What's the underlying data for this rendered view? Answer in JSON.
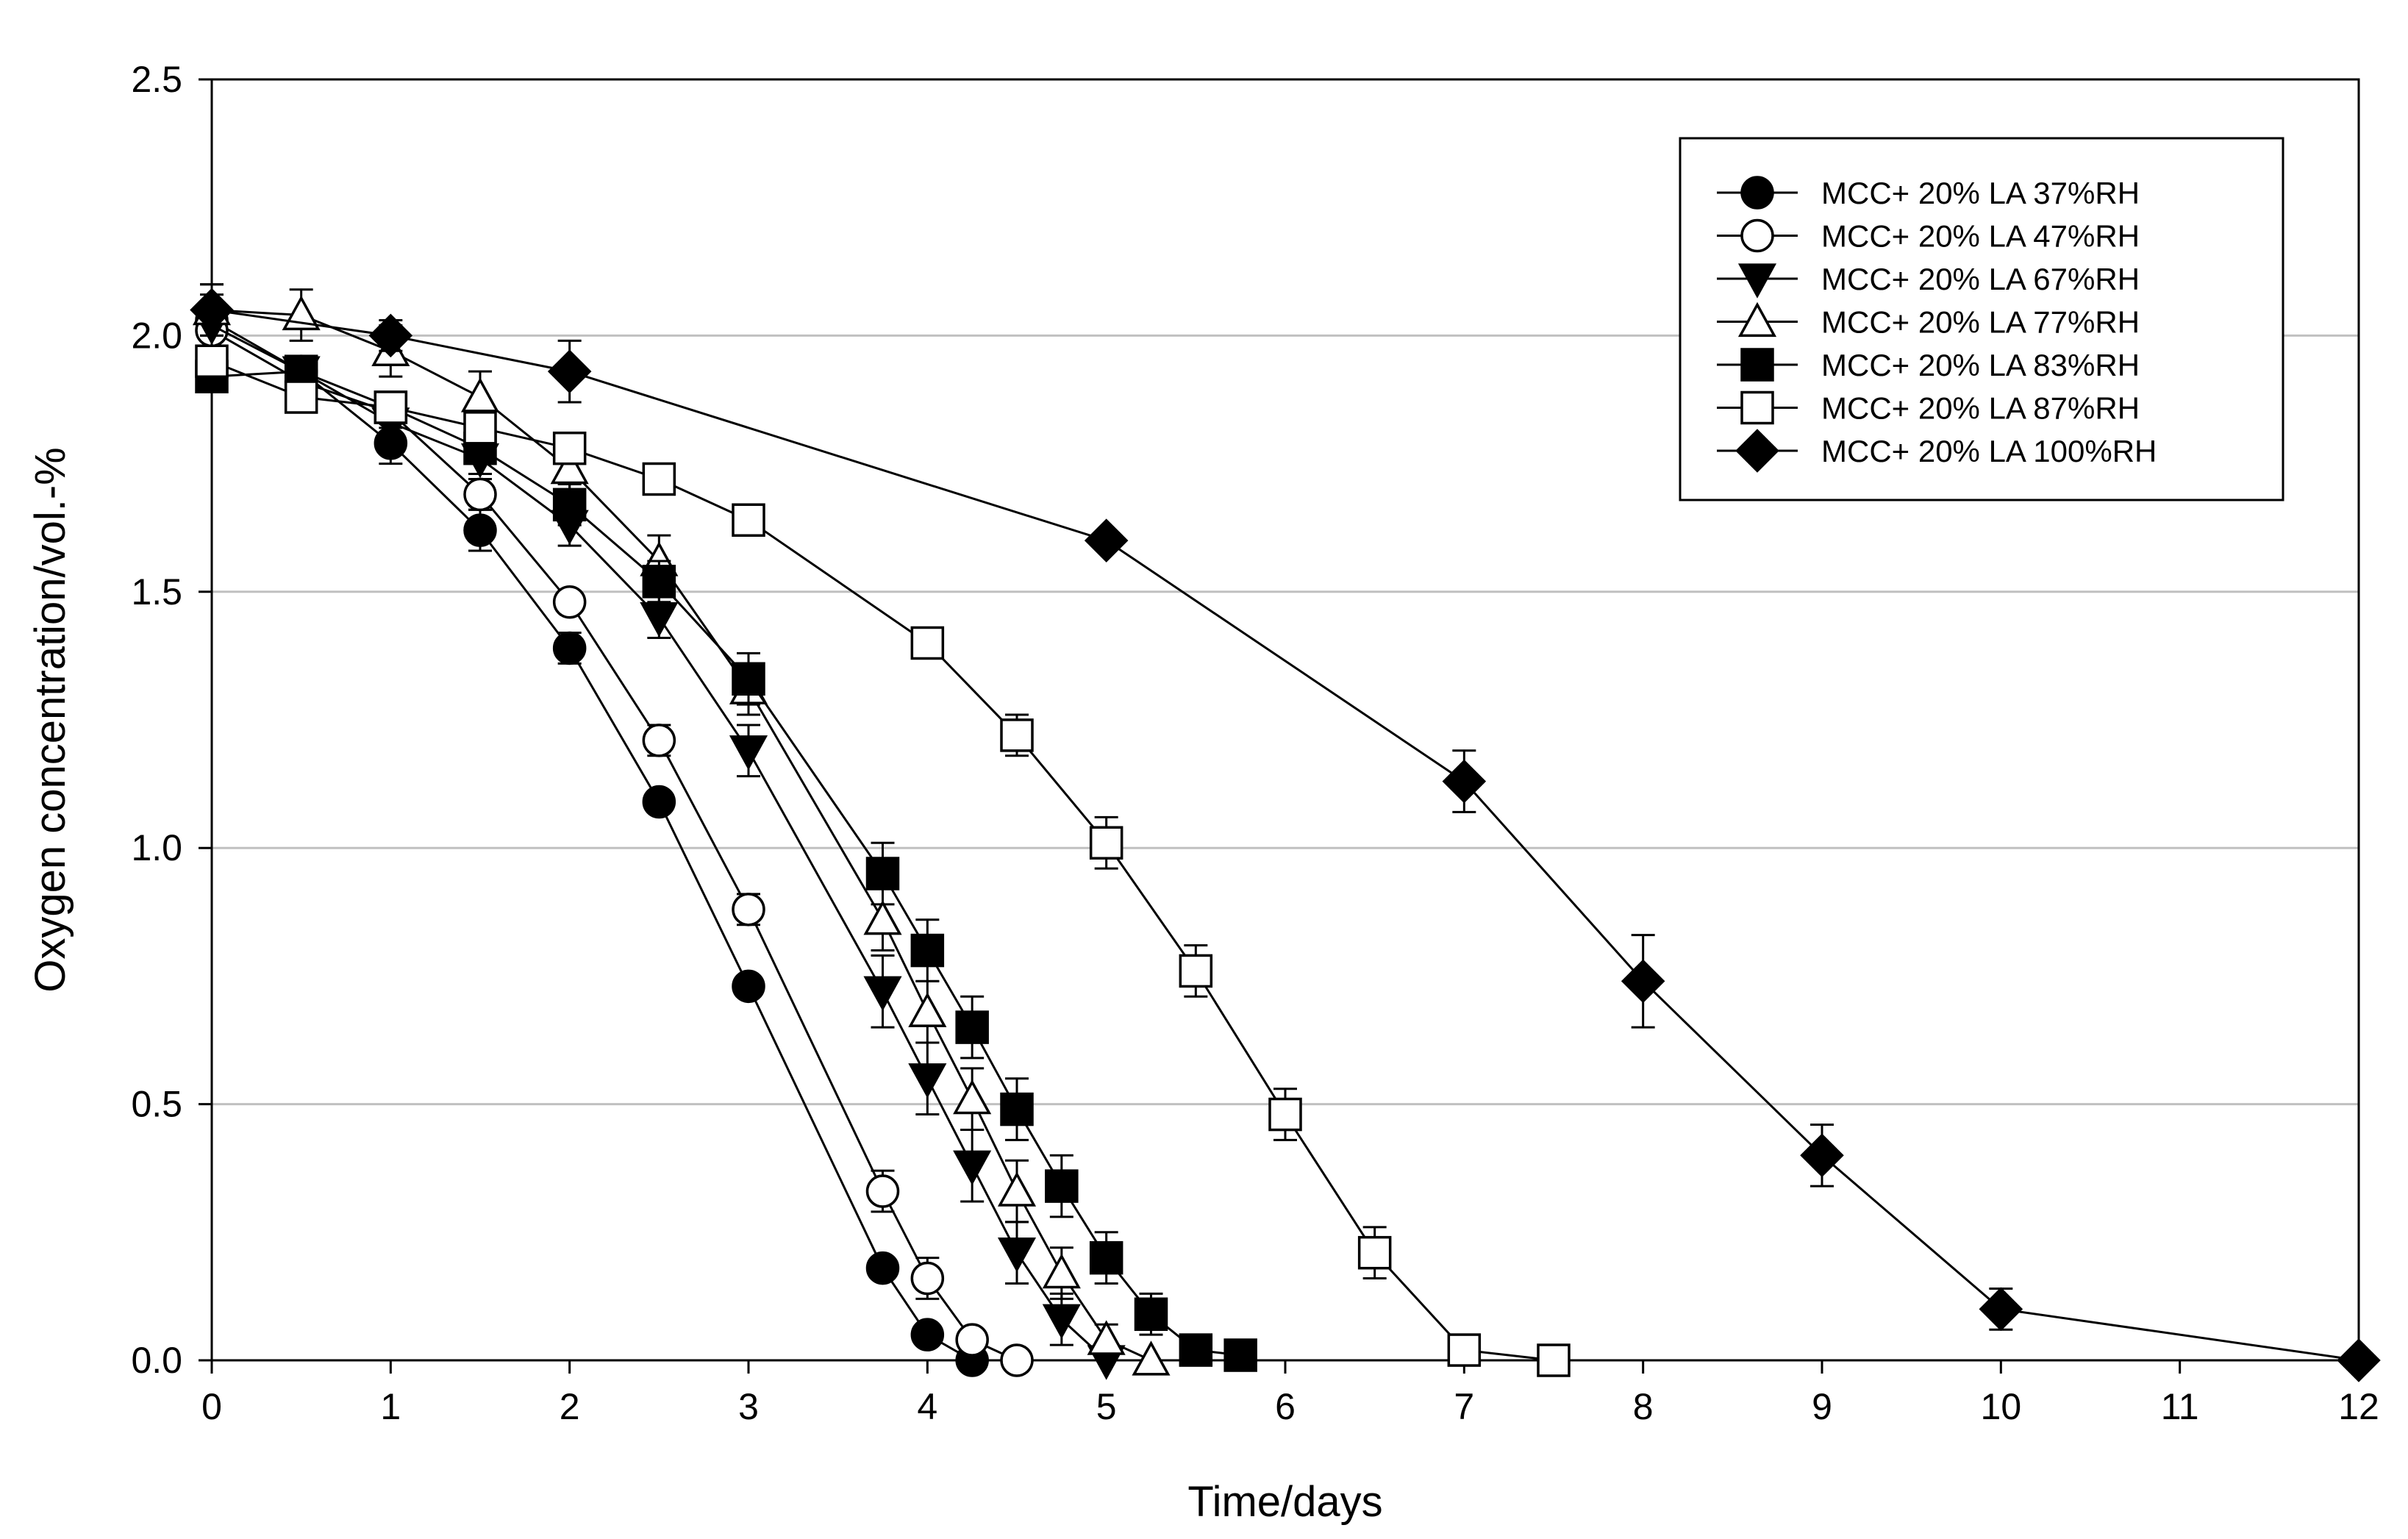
{
  "chart_data": {
    "type": "line",
    "title": "",
    "xlabel": "Time/days",
    "ylabel": "Oxygen concentration/vol.-%",
    "xlim": [
      0,
      12
    ],
    "ylim": [
      0,
      2.5
    ],
    "xticks": [
      "0",
      "1",
      "2",
      "3",
      "4",
      "5",
      "6",
      "7",
      "8",
      "9",
      "10",
      "11",
      "12"
    ],
    "yticks": [
      "0.0",
      "0.5",
      "1.0",
      "1.5",
      "2.0",
      "2.5"
    ],
    "grid": "horizontal",
    "legend_position": "top-right",
    "series": [
      {
        "name": "MCC+ 20% LA 37%RH",
        "marker": "circle",
        "filled": true,
        "x": [
          0,
          0.5,
          1,
          1.5,
          2,
          2.5,
          3,
          3.75,
          4,
          4.25
        ],
        "y": [
          2.03,
          1.93,
          1.79,
          1.62,
          1.39,
          1.09,
          0.73,
          0.18,
          0.05,
          0.0
        ],
        "err": [
          0.05,
          0.03,
          0.04,
          0.04,
          0.03,
          0.02,
          0.02,
          0.02,
          0.01,
          0.0
        ]
      },
      {
        "name": "MCC+ 20% LA 47%RH",
        "marker": "circle",
        "filled": false,
        "x": [
          0,
          0.5,
          1,
          1.5,
          2,
          2.5,
          3,
          3.75,
          4,
          4.25,
          4.5
        ],
        "y": [
          2.01,
          1.91,
          1.85,
          1.69,
          1.48,
          1.21,
          0.88,
          0.33,
          0.16,
          0.04,
          0.0
        ],
        "err": [
          0.03,
          0.03,
          0.03,
          0.03,
          0.02,
          0.03,
          0.03,
          0.04,
          0.04,
          0.02,
          0.0
        ]
      },
      {
        "name": "MCC+ 20% LA 67%RH",
        "marker": "triangle-down",
        "filled": true,
        "x": [
          0,
          0.5,
          1,
          1.5,
          2,
          2.5,
          3,
          3.75,
          4,
          4.25,
          4.5,
          4.75,
          5
        ],
        "y": [
          2.02,
          1.93,
          1.83,
          1.76,
          1.63,
          1.45,
          1.19,
          0.72,
          0.55,
          0.38,
          0.21,
          0.08,
          0.0
        ],
        "err": [
          0.04,
          0.03,
          0.03,
          0.03,
          0.04,
          0.04,
          0.05,
          0.07,
          0.07,
          0.07,
          0.06,
          0.05,
          0.0
        ]
      },
      {
        "name": "MCC+ 20% LA 77%RH",
        "marker": "triangle-up",
        "filled": false,
        "x": [
          0,
          0.5,
          1,
          1.5,
          2,
          2.5,
          3,
          3.75,
          4,
          4.25,
          4.5,
          4.75,
          5,
          5.25
        ],
        "y": [
          2.05,
          2.04,
          1.97,
          1.88,
          1.74,
          1.56,
          1.31,
          0.86,
          0.68,
          0.51,
          0.33,
          0.17,
          0.04,
          0.0
        ],
        "err": [
          0.05,
          0.05,
          0.05,
          0.05,
          0.05,
          0.05,
          0.05,
          0.06,
          0.06,
          0.06,
          0.06,
          0.05,
          0.03,
          0.0
        ]
      },
      {
        "name": "MCC+ 20% LA 83%RH",
        "marker": "square",
        "filled": true,
        "x": [
          0,
          0.5,
          1,
          1.5,
          2,
          2.5,
          3,
          3.75,
          4,
          4.25,
          4.5,
          4.75,
          5,
          5.25,
          5.5,
          5.75
        ],
        "y": [
          1.92,
          1.93,
          1.86,
          1.78,
          1.67,
          1.52,
          1.33,
          0.95,
          0.8,
          0.65,
          0.49,
          0.34,
          0.2,
          0.09,
          0.02,
          0.01
        ],
        "err": [
          0.03,
          0.03,
          0.03,
          0.03,
          0.04,
          0.04,
          0.05,
          0.06,
          0.06,
          0.06,
          0.06,
          0.06,
          0.05,
          0.04,
          0.01,
          0.0
        ]
      },
      {
        "name": "MCC+ 20% LA 87%RH",
        "marker": "square",
        "filled": false,
        "x": [
          0,
          0.5,
          1,
          1.5,
          2,
          2.5,
          3,
          4,
          4.5,
          5,
          5.5,
          6,
          6.5,
          7,
          7.5
        ],
        "y": [
          1.95,
          1.88,
          1.86,
          1.82,
          1.78,
          1.72,
          1.64,
          1.4,
          1.22,
          1.01,
          0.76,
          0.48,
          0.21,
          0.02,
          0.0
        ],
        "err": [
          0.02,
          0.02,
          0.02,
          0.02,
          0.02,
          0.02,
          0.02,
          0.03,
          0.04,
          0.05,
          0.05,
          0.05,
          0.05,
          0.03,
          0.0
        ]
      },
      {
        "name": "MCC+ 20% LA 100%RH",
        "marker": "diamond",
        "filled": true,
        "x": [
          0,
          1,
          2,
          5,
          7,
          8,
          9,
          10,
          12
        ],
        "y": [
          2.05,
          2.0,
          1.93,
          1.6,
          1.13,
          0.74,
          0.4,
          0.1,
          0.0
        ],
        "err": [
          0.05,
          0.03,
          0.06,
          0.0,
          0.06,
          0.09,
          0.06,
          0.04,
          0.0
        ]
      }
    ]
  }
}
